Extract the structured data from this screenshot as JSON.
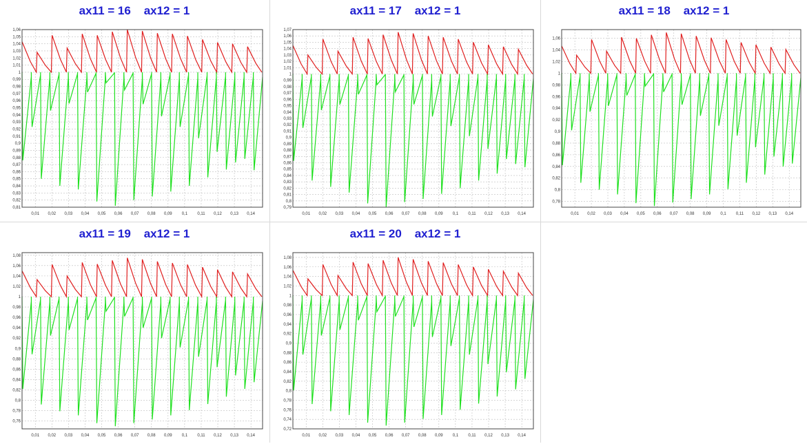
{
  "colors": {
    "title": "#2020d0",
    "upper_series": "#e01e1e",
    "lower_series": "#1ee01e",
    "grid": "#bdbdbd",
    "frame": "#444444"
  },
  "chart_data": [
    {
      "type": "line",
      "title": "ax11 = 16    ax12 = 1",
      "xlim": [
        0.002,
        0.147
      ],
      "ylim": [
        0.81,
        1.06
      ],
      "xticks": [
        "0,01",
        "0,02",
        "0,03",
        "0,04",
        "0,05",
        "0,06",
        "0,07",
        "0,08",
        "0,09",
        "0,1",
        "0,11",
        "0,12",
        "0,13",
        "0,14"
      ],
      "yticks": [
        "1,06",
        "1,05",
        "1,04",
        "1,03",
        "1,02",
        "1,01",
        "1",
        "0,99",
        "0,98",
        "0,97",
        "0,96",
        "0,95",
        "0,94",
        "0,93",
        "0,92",
        "0,91",
        "0,9",
        "0,89",
        "0,88",
        "0,87",
        "0,86",
        "0,85",
        "0,84",
        "0,83",
        "0,82",
        "0,81"
      ],
      "grid": true,
      "series": [
        {
          "color": "red",
          "peaks": [
            1.043,
            1.028,
            1.052,
            1.034,
            1.054,
            1.052,
            1.057,
            1.06,
            1.058,
            1.055,
            1.054,
            1.051,
            1.046,
            1.042,
            1.04,
            1.036
          ],
          "min": 1.0
        },
        {
          "color": "green",
          "troughs": [
            0.876,
            0.923,
            0.85,
            0.946,
            0.84,
            0.956,
            0.835,
            0.972,
            0.818,
            0.985,
            0.812,
            0.975,
            0.82,
            0.955,
            0.825,
            0.938,
            0.832,
            0.923,
            0.84,
            0.907,
            0.852,
            0.888,
            0.863,
            0.873,
            0.878,
            0.862
          ],
          "max": 1.0
        }
      ]
    },
    {
      "type": "line",
      "title": "ax11 = 17    ax12 = 1",
      "xlim": [
        0.002,
        0.147
      ],
      "ylim": [
        0.79,
        1.07
      ],
      "xticks": [
        "0,01",
        "0,02",
        "0,03",
        "0,04",
        "0,05",
        "0,06",
        "0,07",
        "0,08",
        "0,09",
        "0,1",
        "0,11",
        "0,12",
        "0,13",
        "0,14"
      ],
      "yticks": [
        "1,07",
        "1,06",
        "1,05",
        "1,04",
        "1,03",
        "1,02",
        "1,01",
        "1",
        "0,99",
        "0,98",
        "0,97",
        "0,96",
        "0,95",
        "0,94",
        "0,93",
        "0,92",
        "0,91",
        "0,9",
        "0,89",
        "0,88",
        "0,87",
        "0,86",
        "0,85",
        "0,84",
        "0,83",
        "0,82",
        "0,81",
        "0,8",
        "0,79"
      ],
      "grid": true,
      "series": [
        {
          "color": "red",
          "peaks": [
            1.045,
            1.03,
            1.055,
            1.036,
            1.058,
            1.056,
            1.062,
            1.066,
            1.064,
            1.06,
            1.058,
            1.055,
            1.05,
            1.046,
            1.043,
            1.039
          ],
          "min": 1.0
        },
        {
          "color": "green",
          "troughs": [
            0.863,
            0.915,
            0.832,
            0.943,
            0.822,
            0.952,
            0.813,
            0.968,
            0.796,
            0.983,
            0.79,
            0.972,
            0.798,
            0.952,
            0.803,
            0.933,
            0.811,
            0.918,
            0.82,
            0.902,
            0.832,
            0.882,
            0.843,
            0.866,
            0.858,
            0.853
          ],
          "max": 1.0
        }
      ]
    },
    {
      "type": "line",
      "title": "ax11 = 18    ax12 = 1",
      "xlim": [
        0.002,
        0.147
      ],
      "ylim": [
        0.77,
        1.075
      ],
      "xticks": [
        "0,01",
        "0,02",
        "0,03",
        "0,04",
        "0,05",
        "0,06",
        "0,07",
        "0,08",
        "0,09",
        "0,1",
        "0,11",
        "0,12",
        "0,13",
        "0,14"
      ],
      "yticks": [
        "1,06",
        "1,04",
        "1,02",
        "1",
        "0,98",
        "0,96",
        "0,94",
        "0,92",
        "0,9",
        "0,88",
        "0,86",
        "0,84",
        "0,82",
        "0,8",
        "0,78"
      ],
      "grid": true,
      "series": [
        {
          "color": "red",
          "peaks": [
            1.047,
            1.031,
            1.058,
            1.038,
            1.062,
            1.06,
            1.066,
            1.07,
            1.068,
            1.064,
            1.061,
            1.058,
            1.053,
            1.049,
            1.045,
            1.041
          ],
          "min": 1.0
        },
        {
          "color": "green",
          "troughs": [
            0.842,
            0.902,
            0.812,
            0.934,
            0.8,
            0.944,
            0.792,
            0.962,
            0.777,
            0.978,
            0.772,
            0.968,
            0.778,
            0.946,
            0.784,
            0.927,
            0.792,
            0.91,
            0.801,
            0.893,
            0.812,
            0.873,
            0.826,
            0.857,
            0.84,
            0.845
          ],
          "max": 1.0
        }
      ]
    },
    {
      "type": "line",
      "title": "ax11 = 19    ax12 = 1",
      "xlim": [
        0.002,
        0.147
      ],
      "ylim": [
        0.745,
        1.085
      ],
      "xticks": [
        "0,01",
        "0,02",
        "0,03",
        "0,04",
        "0,05",
        "0,06",
        "0,07",
        "0,08",
        "0,09",
        "0,1",
        "0,11",
        "0,12",
        "0,13",
        "0,14"
      ],
      "yticks": [
        "1,08",
        "1,06",
        "1,04",
        "1,02",
        "1",
        "0,98",
        "0,96",
        "0,94",
        "0,92",
        "0,9",
        "0,88",
        "0,86",
        "0,84",
        "0,82",
        "0,8",
        "0,78",
        "0,76"
      ],
      "grid": true,
      "series": [
        {
          "color": "red",
          "peaks": [
            1.05,
            1.033,
            1.062,
            1.04,
            1.066,
            1.063,
            1.07,
            1.075,
            1.072,
            1.068,
            1.065,
            1.062,
            1.057,
            1.052,
            1.048,
            1.044
          ],
          "min": 1.0
        },
        {
          "color": "green",
          "troughs": [
            0.822,
            0.889,
            0.792,
            0.925,
            0.779,
            0.936,
            0.771,
            0.955,
            0.756,
            0.972,
            0.75,
            0.962,
            0.756,
            0.94,
            0.763,
            0.92,
            0.771,
            0.902,
            0.781,
            0.884,
            0.793,
            0.864,
            0.807,
            0.848,
            0.822,
            0.835
          ],
          "max": 1.0
        }
      ]
    },
    {
      "type": "line",
      "title": "ax11 = 20    ax12 = 1",
      "xlim": [
        0.002,
        0.147
      ],
      "ylim": [
        0.72,
        1.09
      ],
      "xticks": [
        "0,01",
        "0,02",
        "0,03",
        "0,04",
        "0,05",
        "0,06",
        "0,07",
        "0,08",
        "0,09",
        "0,1",
        "0,11",
        "0,12",
        "0,13",
        "0,14"
      ],
      "yticks": [
        "1,08",
        "1,06",
        "1,04",
        "1,02",
        "1",
        "0,98",
        "0,96",
        "0,94",
        "0,92",
        "0,9",
        "0,88",
        "0,86",
        "0,84",
        "0,82",
        "0,8",
        "0,78",
        "0,76",
        "0,74",
        "0,72"
      ],
      "grid": true,
      "series": [
        {
          "color": "red",
          "peaks": [
            1.053,
            1.035,
            1.065,
            1.042,
            1.07,
            1.067,
            1.074,
            1.08,
            1.076,
            1.072,
            1.069,
            1.065,
            1.06,
            1.055,
            1.051,
            1.047
          ],
          "min": 1.0
        },
        {
          "color": "green",
          "troughs": [
            0.801,
            0.876,
            0.772,
            0.916,
            0.757,
            0.928,
            0.749,
            0.948,
            0.733,
            0.966,
            0.727,
            0.956,
            0.733,
            0.934,
            0.741,
            0.913,
            0.749,
            0.894,
            0.76,
            0.876,
            0.773,
            0.856,
            0.788,
            0.839,
            0.803,
            0.825
          ],
          "max": 1.0
        }
      ]
    }
  ]
}
